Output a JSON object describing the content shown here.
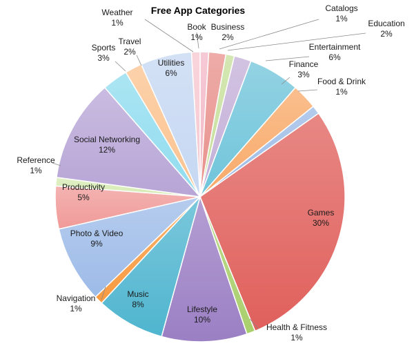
{
  "chart_data": {
    "type": "pie",
    "title": "Free App Categories",
    "slices": [
      {
        "name": "Book",
        "label": "1%",
        "value": 1,
        "color": "#f2b8c6"
      },
      {
        "name": "Business",
        "label": "2%",
        "value": 2,
        "color": "#e8908b"
      },
      {
        "name": "Catalogs",
        "label": "1%",
        "value": 1,
        "color": "#c6df9a"
      },
      {
        "name": "Education",
        "label": "2%",
        "value": 2,
        "color": "#c4afd8"
      },
      {
        "name": "Entertainment",
        "label": "6%",
        "value": 6,
        "color": "#6fc4da"
      },
      {
        "name": "Finance",
        "label": "3%",
        "value": 3,
        "color": "#f8a968"
      },
      {
        "name": "Food & Drink",
        "label": "1%",
        "value": 1,
        "color": "#9bbae6"
      },
      {
        "name": "Games",
        "label": "30%",
        "value": 30,
        "color": "#e0605c"
      },
      {
        "name": "Health & Fitness",
        "label": "1%",
        "value": 1,
        "color": "#a9cf6c"
      },
      {
        "name": "Lifestyle",
        "label": "10%",
        "value": 10,
        "color": "#9b7fc4"
      },
      {
        "name": "Music",
        "label": "8%",
        "value": 8,
        "color": "#4fb5cf"
      },
      {
        "name": "Navigation",
        "label": "1%",
        "value": 1,
        "color": "#f89a40"
      },
      {
        "name": "Photo & Video",
        "label": "9%",
        "value": 9,
        "color": "#9dbbe8"
      },
      {
        "name": "Productivity",
        "label": "5%",
        "value": 5,
        "color": "#f09a98"
      },
      {
        "name": "Reference",
        "label": "1%",
        "value": 1,
        "color": "#d6ebb3"
      },
      {
        "name": "Social Networking",
        "label": "12%",
        "value": 12,
        "color": "#b7a5d6"
      },
      {
        "name": "Sports",
        "label": "3%",
        "value": 3,
        "color": "#8fdcef"
      },
      {
        "name": "Travel",
        "label": "2%",
        "value": 2,
        "color": "#fbc28e"
      },
      {
        "name": "Utilities",
        "label": "6%",
        "value": 6,
        "color": "#c5d7f2"
      },
      {
        "name": "Weather",
        "label": "1%",
        "value": 1,
        "color": "#f7c7cf"
      }
    ]
  }
}
